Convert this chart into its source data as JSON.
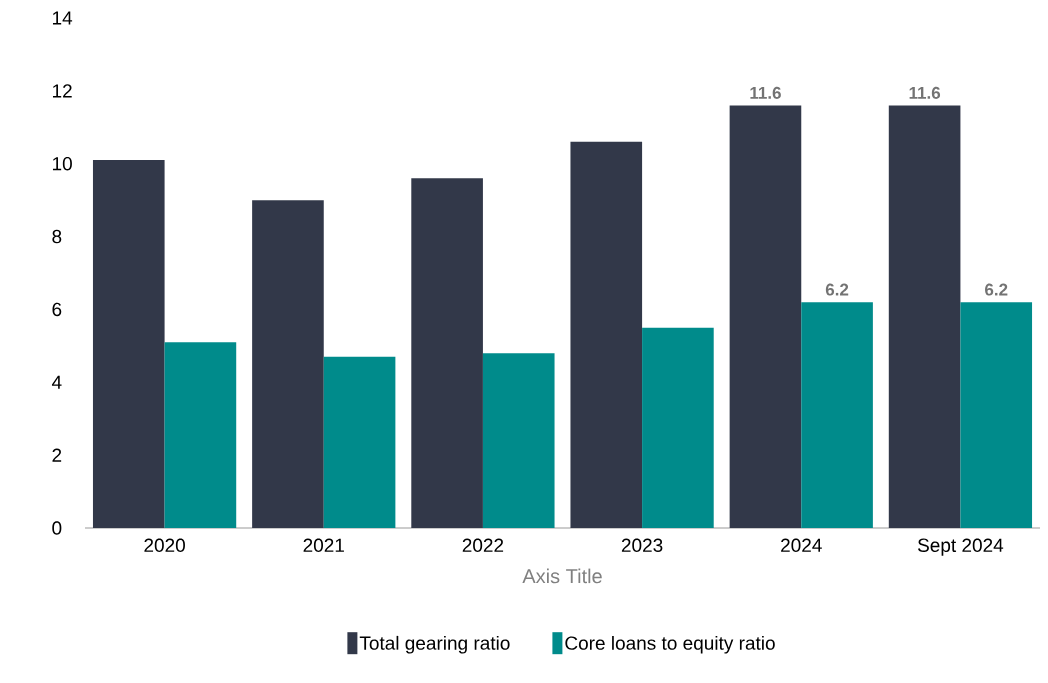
{
  "chart_data": {
    "type": "bar",
    "xlabel": "Axis Title",
    "categories": [
      "2020",
      "2021",
      "2022",
      "2023",
      "2024",
      "Sept 2024"
    ],
    "series": [
      {
        "name": "Total gearing ratio",
        "color": "#323849",
        "values": [
          10.1,
          9.0,
          9.6,
          10.6,
          11.6,
          11.6
        ],
        "value_labels": [
          null,
          null,
          null,
          null,
          "11.6",
          "11.6"
        ]
      },
      {
        "name": "Core loans to equity ratio",
        "color": "#008b8b",
        "values": [
          5.1,
          4.7,
          4.8,
          5.5,
          6.2,
          6.2
        ],
        "value_labels": [
          null,
          null,
          null,
          null,
          "6.2",
          "6.2"
        ]
      }
    ],
    "ylim": [
      0,
      14
    ],
    "yticks": [
      0,
      2,
      4,
      6,
      8,
      10,
      12,
      14
    ],
    "legend": "bottom"
  }
}
